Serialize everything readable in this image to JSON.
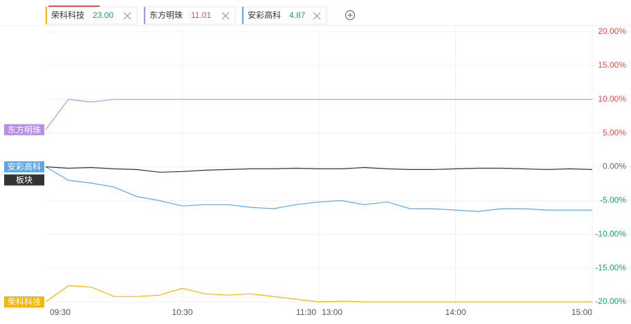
{
  "chart_data": {
    "type": "line",
    "x": [
      "09:30",
      "09:40",
      "09:50",
      "10:00",
      "10:10",
      "10:20",
      "10:30",
      "10:40",
      "10:50",
      "11:00",
      "11:10",
      "11:20",
      "11:30",
      "13:10",
      "13:20",
      "13:30",
      "13:40",
      "13:50",
      "14:00",
      "14:10",
      "14:20",
      "14:30",
      "14:40",
      "14:50",
      "15:00"
    ],
    "xtick_labels": [
      "09:30",
      "10:30",
      "11:30",
      "13:00",
      "14:00",
      "15:00"
    ],
    "ylim": [
      -20,
      20
    ],
    "yticks": [
      {
        "value": 20,
        "label": "20.00%"
      },
      {
        "value": 15,
        "label": "15.00%"
      },
      {
        "value": 10,
        "label": "10.00%"
      },
      {
        "value": 5,
        "label": "5.00%"
      },
      {
        "value": 0,
        "label": "0.00%"
      },
      {
        "value": -5,
        "label": "-5.00%"
      },
      {
        "value": -10,
        "label": "-10.00%"
      },
      {
        "value": -15,
        "label": "-15.00%"
      },
      {
        "value": -20,
        "label": "-20.00%"
      }
    ],
    "grid": true,
    "up_color": "#e84c4c",
    "down_color": "#1fa463",
    "flat_color": "#666666",
    "series": [
      {
        "name": "荣科科技",
        "price": "23.00",
        "price_trend": "down",
        "color": "#f5b400",
        "values": [
          -20,
          -17.6,
          -17.8,
          -19.2,
          -19.2,
          -19,
          -18,
          -18.8,
          -19,
          -18.8,
          -19.2,
          -19.6,
          -20,
          -19.9,
          -20,
          -20,
          -20,
          -20,
          -20,
          -20,
          -20,
          -20,
          -20,
          -20,
          -20
        ]
      },
      {
        "name": "东方明珠",
        "price": "11.01",
        "price_trend": "up",
        "color": "#b98ee6",
        "values": [
          5.5,
          10,
          9.6,
          10,
          10,
          10,
          10,
          10,
          10,
          10,
          10,
          10,
          10,
          10,
          10,
          10,
          10,
          10,
          10,
          10,
          10,
          10,
          10,
          10,
          10
        ]
      },
      {
        "name": "安彩高科",
        "price": "4.87",
        "price_trend": "down",
        "color": "#5aa6e8",
        "values": [
          0,
          -2,
          -2.4,
          -3,
          -4.4,
          -5,
          -5.8,
          -5.6,
          -5.6,
          -6,
          -6.2,
          -5.6,
          -5.2,
          -5,
          -5.6,
          -5.2,
          -6.2,
          -6.2,
          -6.4,
          -6.6,
          -6.2,
          -6.2,
          -6.4,
          -6.4,
          -6.4
        ]
      },
      {
        "name": "板块",
        "color": "#333333",
        "values": [
          0,
          -0.2,
          -0.1,
          -0.3,
          -0.4,
          -0.8,
          -0.7,
          -0.5,
          -0.4,
          -0.3,
          -0.3,
          -0.2,
          -0.3,
          -0.3,
          -0.1,
          -0.3,
          -0.4,
          -0.4,
          -0.3,
          -0.2,
          -0.2,
          -0.3,
          -0.4,
          -0.3,
          -0.4
        ]
      }
    ]
  }
}
